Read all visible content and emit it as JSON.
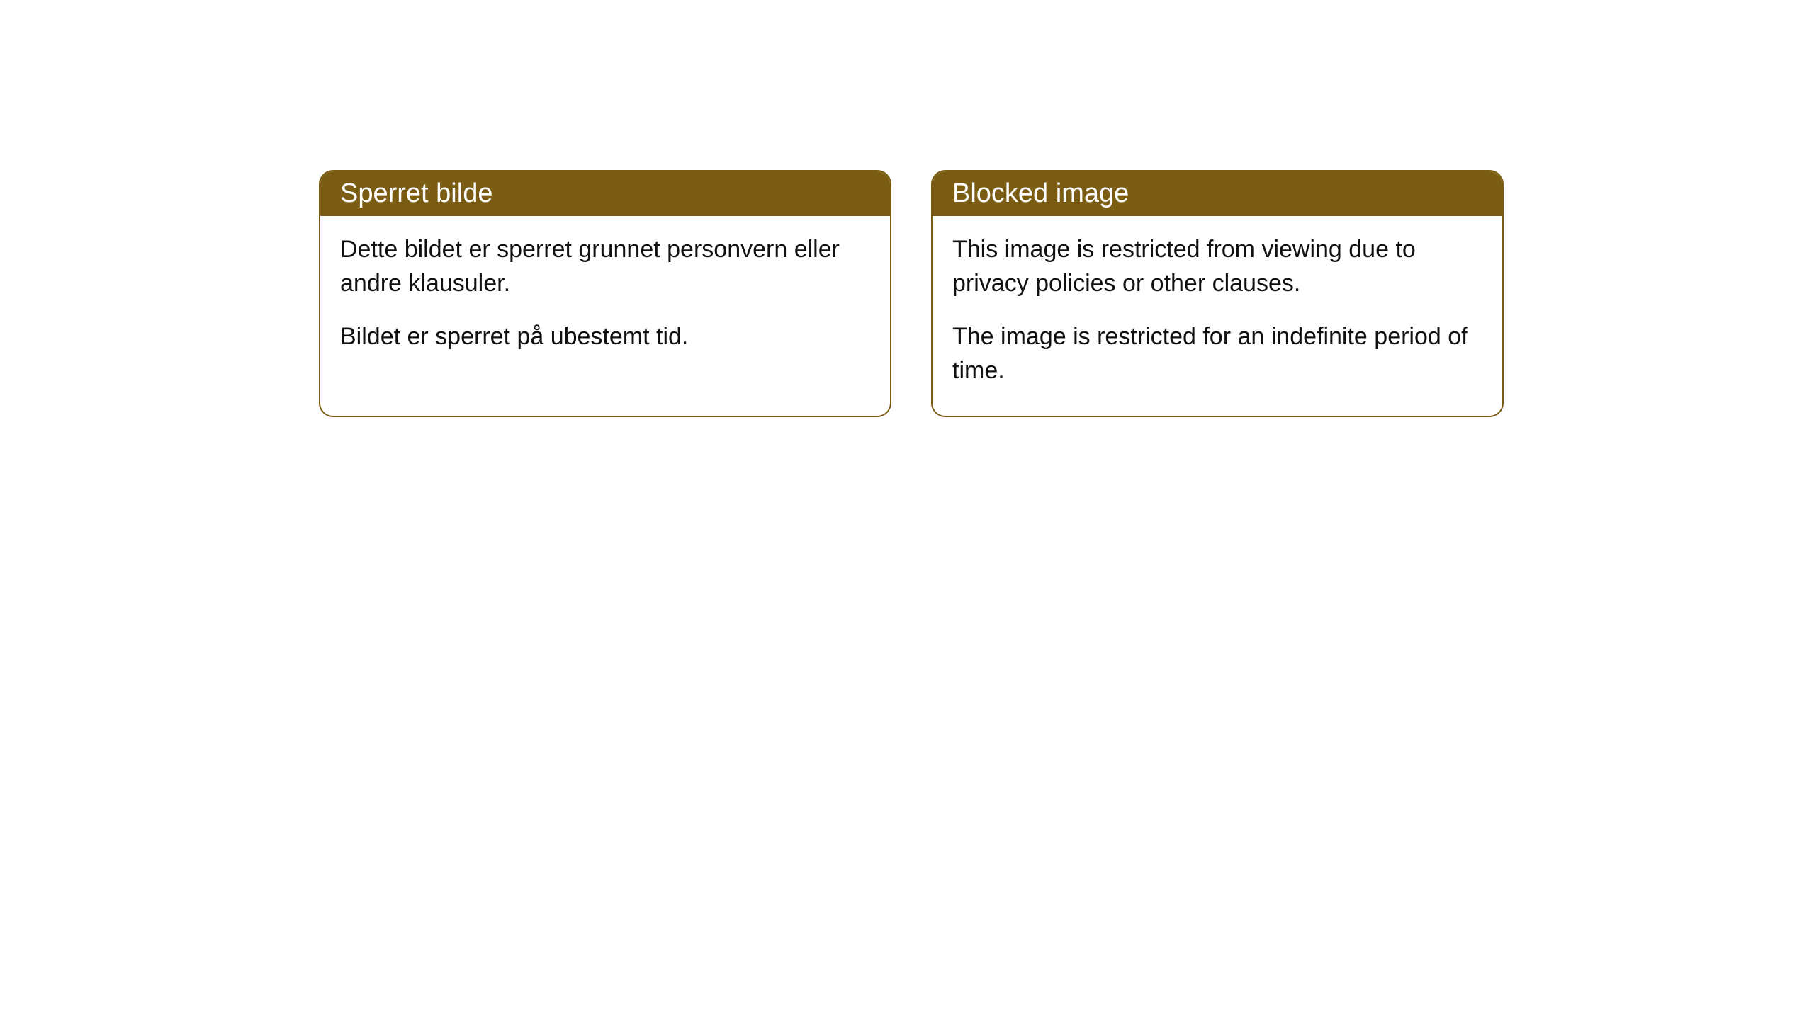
{
  "cards": [
    {
      "title": "Sperret bilde",
      "paragraph1": "Dette bildet er sperret grunnet personvern eller andre klausuler.",
      "paragraph2": "Bildet er sperret på ubestemt tid."
    },
    {
      "title": "Blocked image",
      "paragraph1": "This image is restricted from viewing due to privacy policies or other clauses.",
      "paragraph2": "The image is restricted for an indefinite period of time."
    }
  ],
  "styling": {
    "header_background": "#7a5d13",
    "header_text_color": "#ffffff",
    "border_color": "#7a5d13",
    "body_text_color": "#111111",
    "page_background": "#ffffff",
    "border_radius": 20,
    "header_fontsize": 38,
    "body_fontsize": 34
  }
}
